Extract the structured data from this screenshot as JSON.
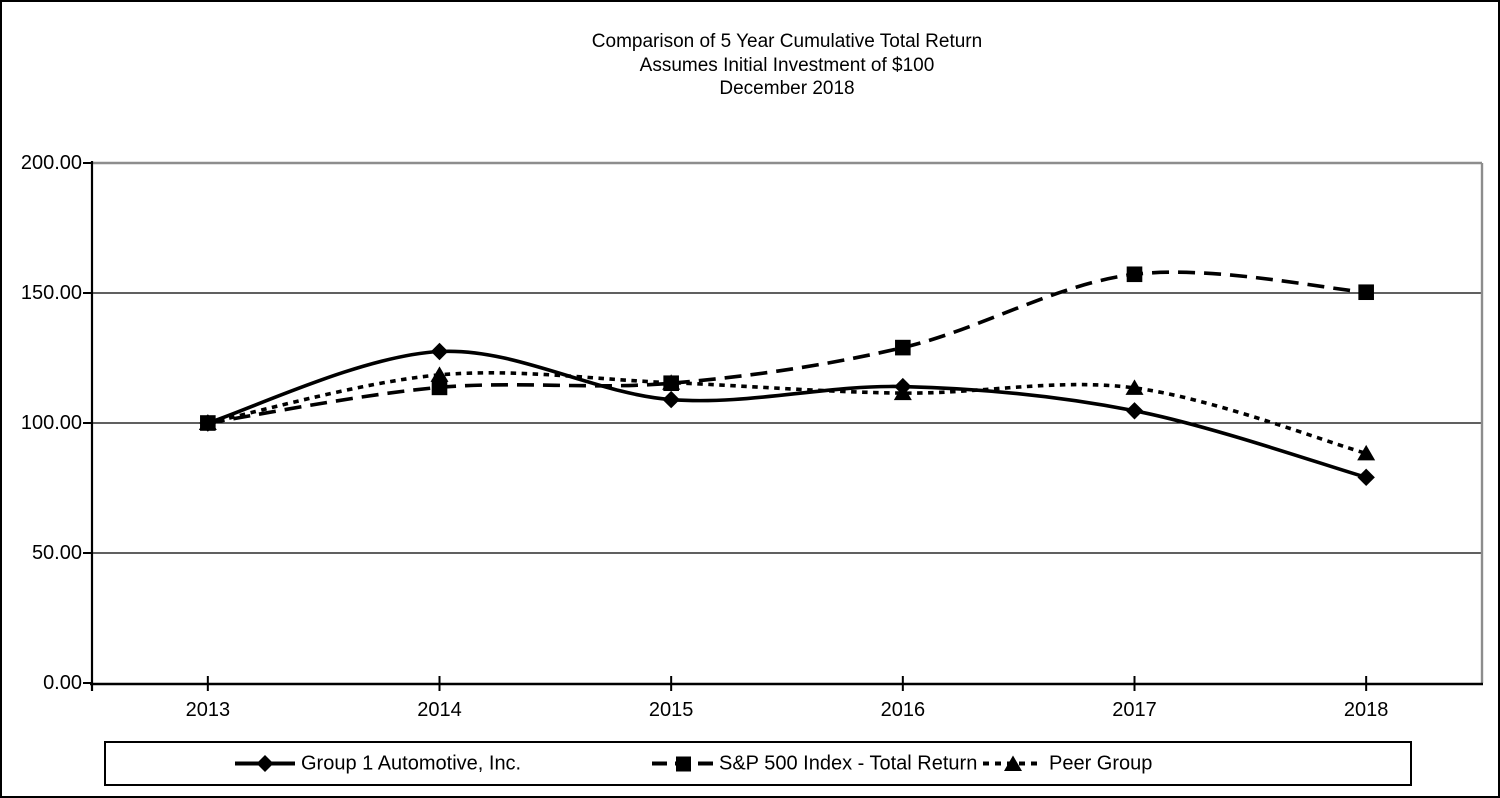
{
  "title": {
    "line1": "Comparison of 5 Year Cumulative Total Return",
    "line2": "Assumes Initial Investment of $100",
    "line3": "December 2018"
  },
  "colors": {
    "series": "#000000",
    "gridline": "#000000",
    "plot_border_gray": "#8d8d8d",
    "background": "#ffffff"
  },
  "chart_data": {
    "type": "line",
    "title": "Comparison of 5 Year Cumulative Total Return",
    "subtitle": "Assumes Initial Investment of $100",
    "date_label": "December 2018",
    "categories": [
      "2013",
      "2014",
      "2015",
      "2016",
      "2017",
      "2018"
    ],
    "series": [
      {
        "name": "Group 1 Automotive, Inc.",
        "marker": "diamond",
        "line_style": "solid",
        "values": [
          100.0,
          127.5,
          109.0,
          114.0,
          104.7,
          79.1
        ]
      },
      {
        "name": "S&P 500 Index - Total Return",
        "marker": "square",
        "line_style": "long-dash",
        "values": [
          100.0,
          113.7,
          115.3,
          129.0,
          157.2,
          150.3
        ]
      },
      {
        "name": "Peer Group",
        "marker": "triangle",
        "line_style": "short-dash",
        "values": [
          100.0,
          118.5,
          115.5,
          111.5,
          113.5,
          88.3
        ]
      }
    ],
    "y_axis": {
      "min": 0,
      "max": 200,
      "tick_interval": 50,
      "tick_labels": [
        "0.00",
        "50.00",
        "100.00",
        "150.00",
        "200.00"
      ]
    },
    "xlabel": "",
    "ylabel": "",
    "grid": "horizontal",
    "smoothed_lines": true,
    "legend_position": "bottom"
  }
}
